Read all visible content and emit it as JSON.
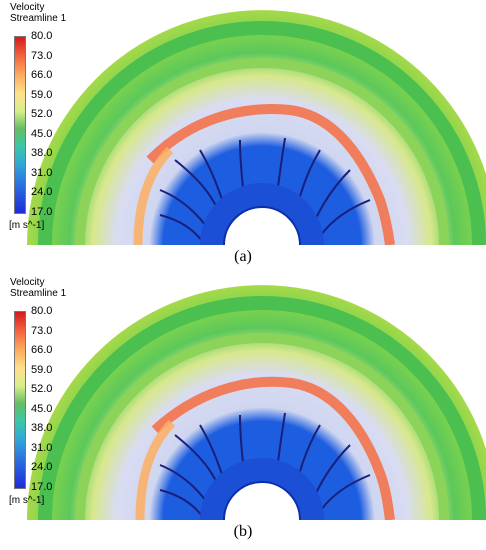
{
  "panels": [
    {
      "legend_title": "Velocity",
      "legend_subtitle": "Streamline 1",
      "ticks": [
        "80.0",
        "73.0",
        "66.0",
        "59.0",
        "52.0",
        "45.0",
        "38.0",
        "31.0",
        "24.0",
        "17.0"
      ],
      "units": "[m s^-1]",
      "caption": "(a)"
    },
    {
      "legend_title": "Velocity",
      "legend_subtitle": "Streamline 1",
      "ticks": [
        "80.0",
        "73.0",
        "66.0",
        "59.0",
        "52.0",
        "45.0",
        "38.0",
        "31.0",
        "24.0",
        "17.0"
      ],
      "units": "[m s^-1]",
      "caption": "(b)"
    }
  ],
  "colors": {
    "high": "#d7191c",
    "mid": "#66bd63",
    "low": "#1f2bd8",
    "streamline": "#1a1f7a",
    "hub": "#1b4fd6"
  }
}
